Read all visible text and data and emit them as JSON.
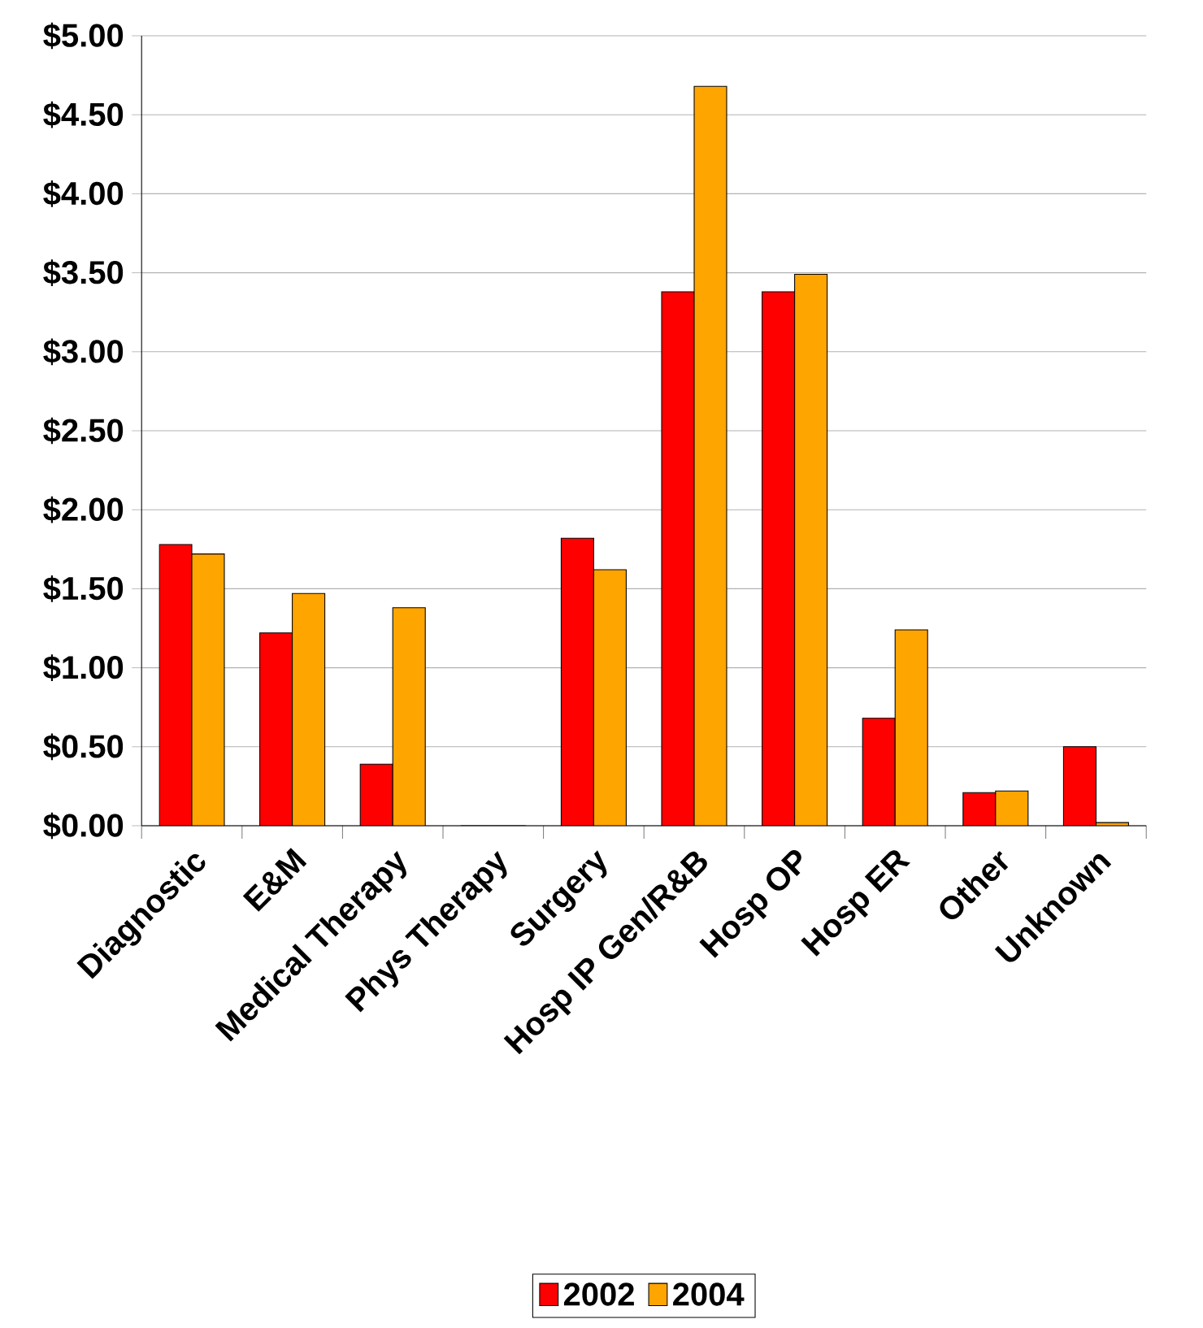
{
  "chart_data": {
    "type": "bar",
    "categories": [
      "Diagnostic",
      "E&M",
      "Medical Therapy",
      "Phys Therapy",
      "Surgery",
      "Hosp IP Gen/R&B",
      "Hosp OP",
      "Hosp ER",
      "Other",
      "Unknown"
    ],
    "series": [
      {
        "name": "2002",
        "color": "#ff0000",
        "values": [
          1.78,
          1.22,
          0.39,
          0,
          1.82,
          3.38,
          3.38,
          0.68,
          0.21,
          0.5
        ]
      },
      {
        "name": "2004",
        "color": "#ffa500",
        "values": [
          1.72,
          1.47,
          1.38,
          0,
          1.62,
          4.68,
          3.49,
          1.24,
          0.22,
          0.02
        ]
      }
    ],
    "ylim": [
      0,
      5
    ],
    "yticks": [
      {
        "value": 0,
        "label": "$0.00"
      },
      {
        "value": 0.5,
        "label": "$0.50"
      },
      {
        "value": 1,
        "label": "$1.00"
      },
      {
        "value": 1.5,
        "label": "$1.50"
      },
      {
        "value": 2,
        "label": "$2.00"
      },
      {
        "value": 2.5,
        "label": "$2.50"
      },
      {
        "value": 3,
        "label": "$3.00"
      },
      {
        "value": 3.5,
        "label": "$3.50"
      },
      {
        "value": 4,
        "label": "$4.00"
      },
      {
        "value": 4.5,
        "label": "$4.50"
      },
      {
        "value": 5,
        "label": "$5.00"
      }
    ],
    "grid": "y",
    "legend": "bottom"
  }
}
